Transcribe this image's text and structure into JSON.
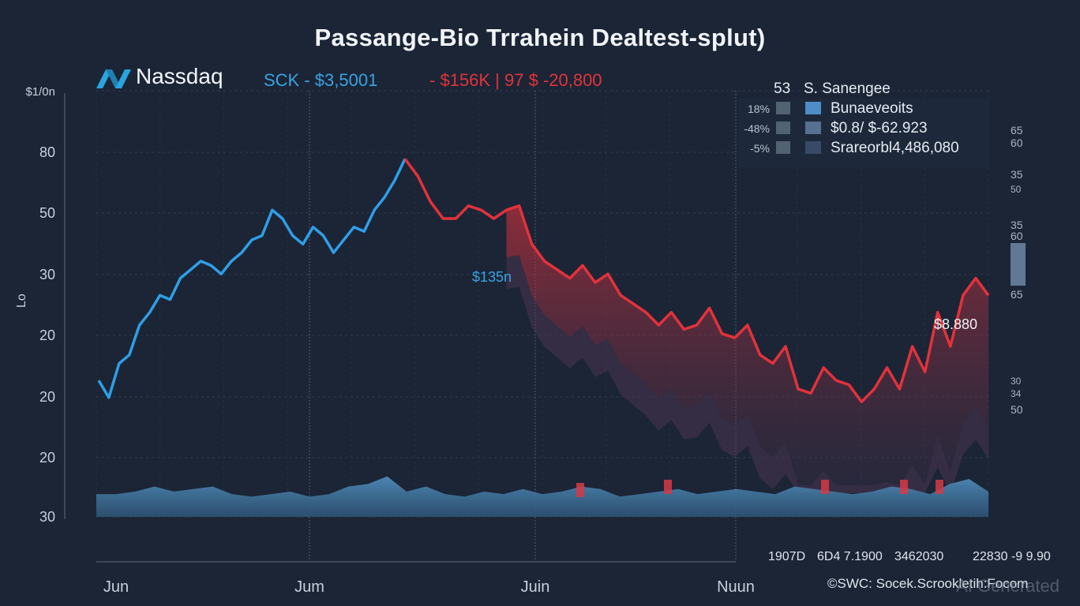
{
  "title": "Passange-Bio Trrahein Dealtest-splut)",
  "brand": {
    "name": "Nassdaq",
    "logo_icon": "nasdaq-logo-icon",
    "color": "#2aa4e0"
  },
  "tickers": {
    "blue": "SCK - $3,5001",
    "red": "- $156K | 97 $ -20,800"
  },
  "legend": {
    "header_num": "53",
    "header_label": "S. Sanengee",
    "items": [
      {
        "pct": "18%",
        "label": "Bunaeveoits",
        "color": "#4d8ec6"
      },
      {
        "pct": "-48%",
        "label": "$0.8/ $-62.923",
        "color": "#56708f"
      },
      {
        "pct": "-5%",
        "label": "Srareorbl4,486,080",
        "color": "#394a66"
      }
    ]
  },
  "annotations": {
    "mid": "$135n",
    "right": "$8.880"
  },
  "footer": {
    "labels_right": [
      "1907D",
      "6D4 7.1900",
      "3462030",
      "22830 -9 9.90"
    ],
    "source": "©SWC: Socek.Scrookletih:Focom",
    "watermark": "AI Generated"
  },
  "right_ticks": {
    "top": [
      "65",
      "60"
    ],
    "mid": [
      "35",
      "50"
    ],
    "mid2": [
      "35",
      "60"
    ],
    "low": [
      "65"
    ],
    "bottom": [
      "30",
      "34",
      "50"
    ]
  },
  "colors": {
    "background": "#1b2536",
    "up_line": "#2f9ee6",
    "down_line": "#e3323a",
    "volume": "#4a7ea8",
    "grid": "#2b3a52",
    "vline": "#4b5b74"
  },
  "chart_data": {
    "type": "line",
    "title": "Passange-Bio Trrahein Dealtest-splut)",
    "xlabel": "",
    "ylabel": "",
    "x_ticks": [
      "Jun",
      "Jum",
      "Juin",
      "Nuun"
    ],
    "y_ticks": [
      "$1/0n",
      "80",
      "50",
      "30",
      "20",
      "20",
      "20",
      "30"
    ],
    "ylim": [
      0,
      100
    ],
    "series": [
      {
        "name": "price-up",
        "color": "#2f9ee6",
        "values": [
          32,
          28,
          36,
          38,
          45,
          48,
          52,
          51,
          56,
          58,
          60,
          59,
          57,
          60,
          62,
          65,
          66,
          72,
          70,
          66,
          64,
          68,
          66,
          62,
          65,
          68,
          67,
          72,
          75,
          79,
          84
        ]
      },
      {
        "name": "price-down",
        "color": "#e3323a",
        "values": [
          84,
          80,
          74,
          70,
          70,
          73,
          72,
          70,
          72,
          73,
          64,
          60,
          58,
          56,
          59,
          55,
          57,
          52,
          50,
          48,
          45,
          48,
          44,
          45,
          49,
          43,
          42,
          45,
          38,
          36,
          40,
          30,
          29,
          35,
          32,
          31,
          27,
          30,
          35,
          30,
          40,
          34,
          48,
          40,
          52,
          56,
          52
        ]
      },
      {
        "name": "volume",
        "color": "#4a7ea8",
        "values": [
          9,
          9,
          10,
          12,
          10,
          11,
          12,
          9,
          8,
          9,
          10,
          8,
          9,
          12,
          13,
          16,
          10,
          12,
          9,
          8,
          10,
          9,
          11,
          9,
          10,
          12,
          11,
          8,
          9,
          10,
          11,
          9,
          10,
          11,
          10,
          9,
          12,
          11,
          10,
          9,
          10,
          12,
          11,
          9,
          13,
          15,
          10
        ]
      }
    ]
  }
}
